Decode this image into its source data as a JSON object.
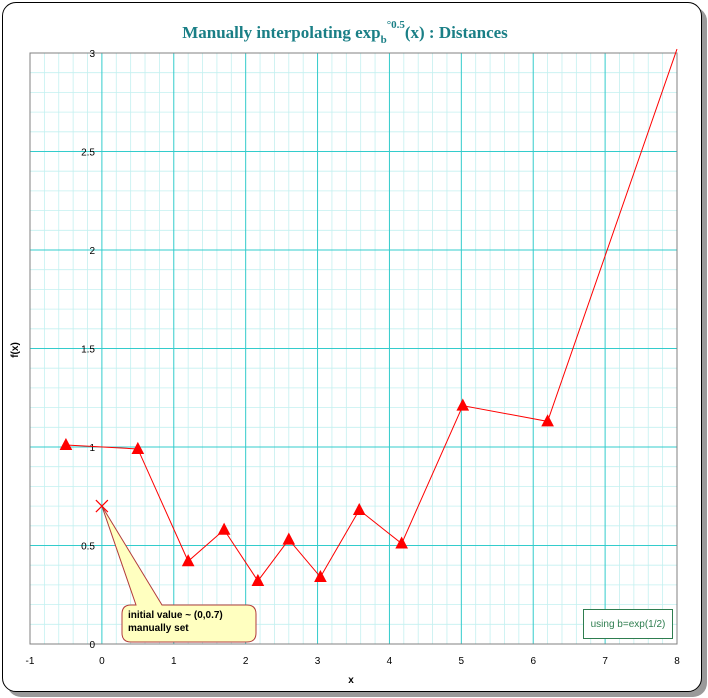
{
  "chart_data": {
    "type": "line",
    "title": {
      "main": "Manually interpolating exp",
      "sub": "b",
      "sup": "°0.5",
      "tail": "(x) : Distances"
    },
    "xlabel": "x",
    "ylabel": "f(x)",
    "xlim": [
      -1,
      8
    ],
    "ylim": [
      0,
      3
    ],
    "x_ticks": [
      "-1",
      "0",
      "1",
      "2",
      "3",
      "4",
      "5",
      "6",
      "7",
      "8"
    ],
    "y_ticks": [
      "0",
      "0.5",
      "1",
      "1.5",
      "2",
      "2.5",
      "3"
    ],
    "grid": true,
    "series": [
      {
        "color": "#ff0000",
        "marker": "triangle",
        "x": [
          -0.5,
          0.5,
          1.2,
          1.7,
          2.17,
          2.6,
          3.04,
          3.58,
          4.17,
          5.02,
          6.2,
          8.0
        ],
        "y": [
          1.01,
          0.99,
          0.42,
          0.58,
          0.32,
          0.53,
          0.34,
          0.68,
          0.51,
          1.21,
          1.13,
          3.02
        ],
        "markers": [
          true,
          true,
          true,
          true,
          true,
          true,
          true,
          true,
          true,
          true,
          true,
          false
        ]
      }
    ],
    "initial_point": {
      "x": 0,
      "y": 0.7,
      "marker": "x"
    },
    "annotations": {
      "callout_line1": "initial value ~ (0,0.7)",
      "callout_line2": "manually set",
      "note": "using b=exp(1/2)"
    },
    "colors": {
      "grid_major": "#33cccc",
      "grid_minor": "#c4f0f0",
      "title": "#1a7f86",
      "series": "#ff0000",
      "callout_fill": "#ffffc0",
      "callout_border": "#b23b3b",
      "note_border": "#2e7d4f"
    }
  }
}
